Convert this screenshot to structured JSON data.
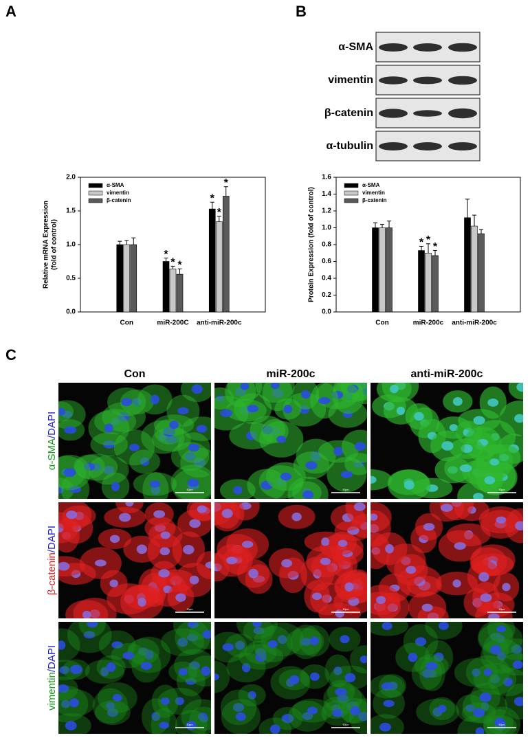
{
  "panels": {
    "a": "A",
    "b": "B",
    "c": "C"
  },
  "chart_data": [
    {
      "type": "bar",
      "ylabel": [
        "Relative mRNA Expression",
        "(fold of control)"
      ],
      "categories": [
        "Con",
        "miR-200C",
        "anti-miR-200c"
      ],
      "ylim": [
        0,
        2.0
      ],
      "yticks": [
        {
          "value": 0,
          "label": "0.0"
        },
        0.5,
        {
          "value": 1,
          "label": "1.0"
        },
        1.5,
        {
          "value": 2,
          "label": "2.0"
        }
      ],
      "series": [
        {
          "name": "α-SMA",
          "color": "#000000",
          "values": [
            1.0,
            0.75,
            1.53
          ],
          "errors": [
            0.05,
            0.05,
            0.1
          ],
          "markers": [
            null,
            "*",
            "*"
          ]
        },
        {
          "name": "vimentin",
          "color": "#c8c8c8",
          "values": [
            1.0,
            0.64,
            1.34
          ],
          "errors": [
            0.06,
            0.04,
            0.08
          ],
          "markers": [
            null,
            "*",
            "*"
          ]
        },
        {
          "name": "β-catenin",
          "color": "#5a5a5a",
          "values": [
            1.0,
            0.56,
            1.72
          ],
          "errors": [
            0.1,
            0.08,
            0.14
          ],
          "markers": [
            null,
            "*",
            "*"
          ]
        }
      ],
      "legend": "upper left"
    },
    {
      "type": "bar",
      "ylabel": [
        "Protein Expression (fold of control)"
      ],
      "categories": [
        "Con",
        "miR-200c",
        "anti-miR-200c"
      ],
      "ylim": [
        0,
        1.6
      ],
      "yticks": [
        {
          "value": 0,
          "label": "0.0"
        },
        0.2,
        0.4,
        0.6,
        0.8,
        {
          "value": 1,
          "label": "1.0"
        },
        1.2,
        1.4,
        1.6
      ],
      "series": [
        {
          "name": "α-SMA",
          "color": "#000000",
          "values": [
            1.0,
            0.73,
            1.12
          ],
          "errors": [
            0.06,
            0.05,
            0.22
          ],
          "markers": [
            null,
            "*",
            null
          ]
        },
        {
          "name": "vimentin",
          "color": "#c8c8c8",
          "values": [
            1.0,
            0.7,
            1.02
          ],
          "errors": [
            0.04,
            0.11,
            0.13
          ],
          "markers": [
            null,
            "*",
            null
          ]
        },
        {
          "name": "β-catenin",
          "color": "#5a5a5a",
          "values": [
            1.0,
            0.67,
            0.93
          ],
          "errors": [
            0.08,
            0.06,
            0.05
          ],
          "markers": [
            null,
            "*",
            null
          ]
        }
      ],
      "legend": "upper left"
    }
  ],
  "blot": {
    "labels": [
      "α-SMA",
      "vimentin",
      "β-catenin",
      "α-tubulin"
    ]
  },
  "images": {
    "columns": [
      "Con",
      "miR-200c",
      "anti-miR-200c"
    ],
    "rows": [
      {
        "stain": "α-SMA",
        "counterstain": "/DAPI"
      },
      {
        "stain": "β-catenin",
        "counterstain": "/DAPI"
      },
      {
        "stain": "vimentin",
        "counterstain": "/DAPI"
      }
    ],
    "scale_bar": "50μm"
  }
}
